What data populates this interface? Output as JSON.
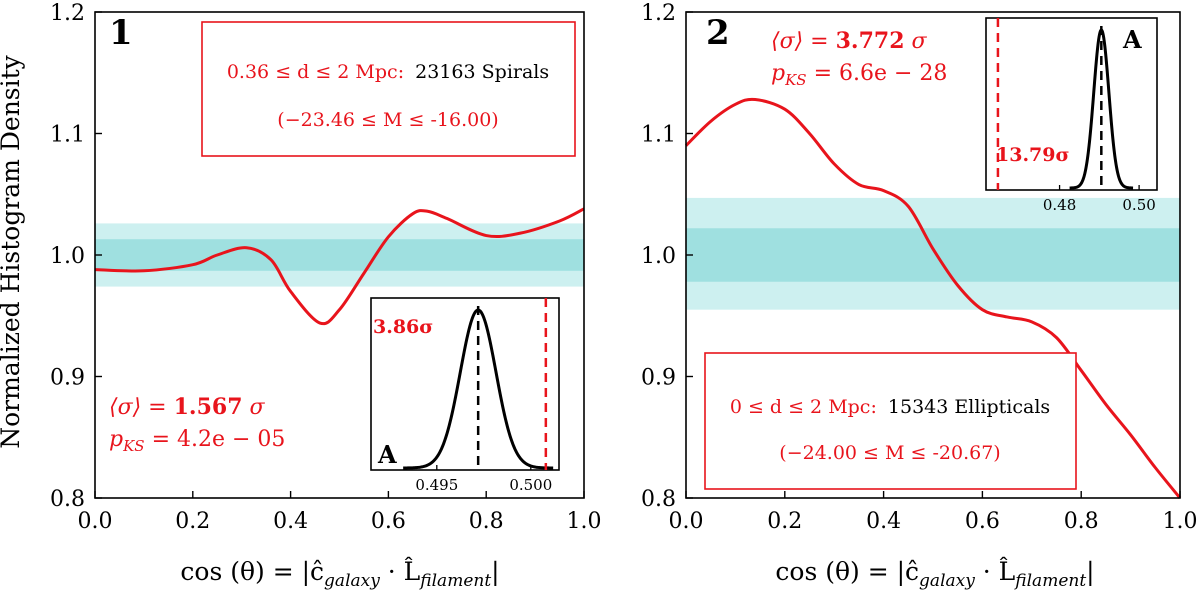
{
  "colors": {
    "red": "#e8141c",
    "band_inner": "#9fe0e0",
    "band_outer": "#cdf0f0",
    "black": "#000000"
  },
  "ylabel": "Normalized Histogram Density",
  "xlabel_parts": {
    "prefix": "cos (θ) = |ĉ",
    "sub1": "galaxy",
    "mid": " · L̂",
    "sub2": "filament",
    "suffix": "|"
  },
  "chart_data": [
    {
      "type": "line",
      "panel_label": "1",
      "xlim": [
        0.0,
        1.0
      ],
      "ylim": [
        0.8,
        1.2
      ],
      "x_ticks": [
        "0.0",
        "0.2",
        "0.4",
        "0.6",
        "0.8",
        "1.0"
      ],
      "y_ticks": [
        "0.8",
        "0.9",
        "1.0",
        "1.1",
        "1.2"
      ],
      "band_inner": [
        0.987,
        1.013
      ],
      "band_outer": [
        0.974,
        1.026
      ],
      "x": [
        0.0,
        0.1,
        0.2,
        0.25,
        0.31,
        0.36,
        0.4,
        0.46,
        0.5,
        0.55,
        0.6,
        0.65,
        0.68,
        0.72,
        0.8,
        0.87,
        0.95,
        1.0
      ],
      "y": [
        0.988,
        0.987,
        0.992,
        1.0,
        1.006,
        0.996,
        0.97,
        0.944,
        0.955,
        0.985,
        1.015,
        1.034,
        1.036,
        1.03,
        1.016,
        1.018,
        1.028,
        1.038
      ],
      "box": {
        "line1_red": "0.36 ≤ d ≤ 2 Mpc:",
        "line1_black": "23163 Spirals",
        "line2": "(−23.46 ≤ M ≤ -16.00)"
      },
      "stats": {
        "sigma_prefix": "⟨σ⟩ = ",
        "sigma_value": "1.567",
        "sigma_unit": " σ",
        "pks_prefix": "p",
        "pks_sub": "KS",
        "pks_value": " = 4.2e − 05"
      },
      "inset": {
        "label": "A",
        "sigma_label": "3.86σ",
        "x_ticks": [
          "0.495",
          "0.500"
        ],
        "x_tick_values": [
          0.495,
          0.5
        ],
        "xlim": [
          0.4915,
          0.5015
        ],
        "gauss_mu": 0.4972,
        "gauss_sd": 0.00095,
        "red_line": 0.5008
      }
    },
    {
      "type": "line",
      "panel_label": "2",
      "xlim": [
        0.0,
        1.0
      ],
      "ylim": [
        0.8,
        1.2
      ],
      "x_ticks": [
        "0.0",
        "0.2",
        "0.4",
        "0.6",
        "0.8",
        "1.0"
      ],
      "y_ticks": [
        "0.8",
        "0.9",
        "1.0",
        "1.1",
        "1.2"
      ],
      "band_inner": [
        0.978,
        1.022
      ],
      "band_outer": [
        0.955,
        1.047
      ],
      "x": [
        0.0,
        0.05,
        0.1,
        0.14,
        0.2,
        0.25,
        0.3,
        0.35,
        0.4,
        0.45,
        0.5,
        0.55,
        0.6,
        0.65,
        0.7,
        0.75,
        0.8,
        0.85,
        0.9,
        0.95,
        1.0
      ],
      "y": [
        1.09,
        1.11,
        1.124,
        1.128,
        1.12,
        1.1,
        1.075,
        1.058,
        1.053,
        1.04,
        1.005,
        0.975,
        0.955,
        0.949,
        0.945,
        0.932,
        0.905,
        0.877,
        0.852,
        0.825,
        0.8
      ],
      "box": {
        "line1_red": "0 ≤ d ≤ 2 Mpc:",
        "line1_black": "15343 Ellipticals",
        "line2": "(−24.00 ≤ M ≤ -20.67)"
      },
      "stats": {
        "sigma_prefix": "⟨σ⟩ = ",
        "sigma_value": "3.772",
        "sigma_unit": " σ",
        "pks_prefix": "p",
        "pks_sub": "KS",
        "pks_value": " = 6.6e − 28"
      },
      "inset": {
        "label": "A",
        "sigma_label": "13.79σ",
        "x_ticks": [
          "0.48",
          "0.50"
        ],
        "x_tick_values": [
          0.48,
          0.5
        ],
        "xlim": [
          0.4615,
          0.5045
        ],
        "gauss_mu": 0.4905,
        "gauss_sd": 0.0019,
        "red_line": 0.4645
      }
    }
  ]
}
